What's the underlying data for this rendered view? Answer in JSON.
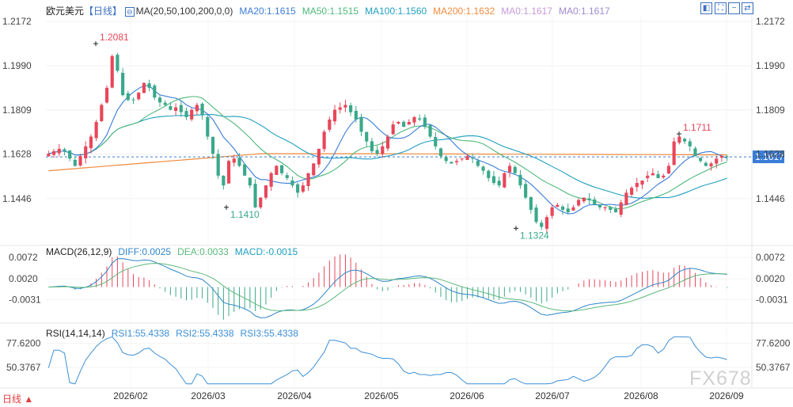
{
  "header": {
    "symbol": "欧元美元",
    "period_tag": "【日线】",
    "swap_icon": "⊖",
    "ma_label": "MA(20,50,100,200,0,0)",
    "ma20": "MA20:1.1615",
    "ma50": "MA50:1.1515",
    "ma100": "MA100:1.1560",
    "ma200": "MA200:1.1632",
    "ma0a": "MA0:1.1617",
    "ma0b": "MA0:1.1617"
  },
  "macd_legend": {
    "label": "MACD(26,12,9)",
    "diff": "DIFF:0.0025",
    "dea": "DEA:0.0033",
    "macd": "MACD:-0.0015"
  },
  "rsi_legend": {
    "label": "RSI(14,14,14)",
    "rsi1": "RSI1:55.4338",
    "rsi2": "RSI2:55.4338",
    "rsi3": "RSI3:55.4338"
  },
  "footer": {
    "period_button": "日线 ▲",
    "watermark": "FX678"
  },
  "toolbar_icons": [
    "chart-type-icon",
    "fullscreen-icon",
    "minus-icon",
    "settings-icon"
  ],
  "colors": {
    "up": "#e8465a",
    "down": "#3aa88a",
    "ma20": "#3a7dd8",
    "ma50": "#4db87a",
    "ma100": "#1f9ec0",
    "ma200": "#f08a3c",
    "ma0": "#c59ad8",
    "price_tag": "#3a7dd8",
    "diff": "#2f86c9",
    "dea": "#5ab87a",
    "rsi": "#3c8fd6"
  },
  "chart_data": [
    {
      "type": "candlestick",
      "title": "欧元美元 日线",
      "yticks": [
        1.2172,
        1.199,
        1.1809,
        1.1628,
        1.1446
      ],
      "ylim": [
        1.127,
        1.2195
      ],
      "xticks": [
        "2026/02",
        "2026/03",
        "2026/04",
        "2026/05",
        "2026/06",
        "2026/07",
        "2026/08",
        "2026/09"
      ],
      "last_price": 1.1617,
      "annotations": [
        {
          "label": "1.2081",
          "value": 1.2081,
          "kind": "high"
        },
        {
          "label": "1.1410",
          "value": 1.141,
          "kind": "low"
        },
        {
          "label": "1.1324",
          "value": 1.1324,
          "kind": "low"
        },
        {
          "label": "1.1711",
          "value": 1.1711,
          "kind": "high"
        }
      ],
      "close_path": [
        1.163,
        1.164,
        1.165,
        1.164,
        1.161,
        1.158,
        1.162,
        1.166,
        1.17,
        1.176,
        1.183,
        1.19,
        1.203,
        1.197,
        1.187,
        1.185,
        1.185,
        1.188,
        1.192,
        1.19,
        1.186,
        1.184,
        1.183,
        1.181,
        1.182,
        1.18,
        1.178,
        1.181,
        1.183,
        1.179,
        1.17,
        1.163,
        1.154,
        1.15,
        1.16,
        1.161,
        1.158,
        1.154,
        1.15,
        1.141,
        1.145,
        1.15,
        1.155,
        1.158,
        1.155,
        1.153,
        1.15,
        1.147,
        1.15,
        1.155,
        1.159,
        1.165,
        1.172,
        1.177,
        1.181,
        1.182,
        1.183,
        1.18,
        1.177,
        1.172,
        1.168,
        1.164,
        1.163,
        1.166,
        1.17,
        1.175,
        1.176,
        1.174,
        1.176,
        1.178,
        1.177,
        1.174,
        1.17,
        1.166,
        1.162,
        1.16,
        1.159,
        1.16,
        1.161,
        1.162,
        1.161,
        1.158,
        1.156,
        1.153,
        1.151,
        1.15,
        1.155,
        1.158,
        1.155,
        1.15,
        1.145,
        1.14,
        1.135,
        1.133,
        1.137,
        1.141,
        1.142,
        1.14,
        1.139,
        1.141,
        1.144,
        1.145,
        1.144,
        1.142,
        1.141,
        1.141,
        1.14,
        1.139,
        1.143,
        1.147,
        1.149,
        1.151,
        1.152,
        1.154,
        1.155,
        1.153,
        1.154,
        1.158,
        1.168,
        1.17,
        1.168,
        1.166,
        1.162,
        1.16,
        1.158,
        1.159,
        1.161,
        1.162,
        1.1617
      ],
      "series": [
        {
          "name": "MA20",
          "value": 1.1615
        },
        {
          "name": "MA50",
          "value": 1.1515
        },
        {
          "name": "MA100",
          "value": 1.156
        },
        {
          "name": "MA200",
          "value": 1.1632
        }
      ]
    },
    {
      "type": "line",
      "title": "MACD(26,12,9)",
      "yticks": [
        0.0072,
        0.002,
        -0.0031
      ],
      "ylim": [
        -0.0082,
        0.0082
      ],
      "series": [
        {
          "name": "DIFF",
          "last": 0.0025
        },
        {
          "name": "DEA",
          "last": 0.0033
        },
        {
          "name": "MACD",
          "last": -0.0015
        }
      ]
    },
    {
      "type": "line",
      "title": "RSI(14,14,14)",
      "yticks": [
        77.62,
        50.3767
      ],
      "ylim": [
        30,
        88
      ],
      "series": [
        {
          "name": "RSI1",
          "last": 55.4338
        },
        {
          "name": "RSI2",
          "last": 55.4338
        },
        {
          "name": "RSI3",
          "last": 55.4338
        }
      ]
    }
  ]
}
